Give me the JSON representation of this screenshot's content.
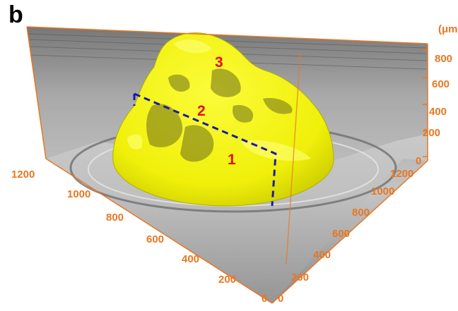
{
  "figure": {
    "panel_label": "b",
    "unit_label": "(μm",
    "colors": {
      "axis": "#e87722",
      "tissue": "#f2f20d",
      "region_label": "#e01010",
      "section_line": "#1a1aa8",
      "background": "#bdbdbd"
    }
  },
  "axes": {
    "z_ticks": [
      "0",
      "200",
      "400",
      "600",
      "800"
    ],
    "right_ticks": [
      "1200",
      "1000",
      "800",
      "600",
      "400",
      "200",
      "0"
    ],
    "left_ticks": [
      "1200",
      "1000",
      "800",
      "600",
      "400",
      "200",
      "0"
    ]
  },
  "regions": [
    "1",
    "2",
    "3"
  ]
}
